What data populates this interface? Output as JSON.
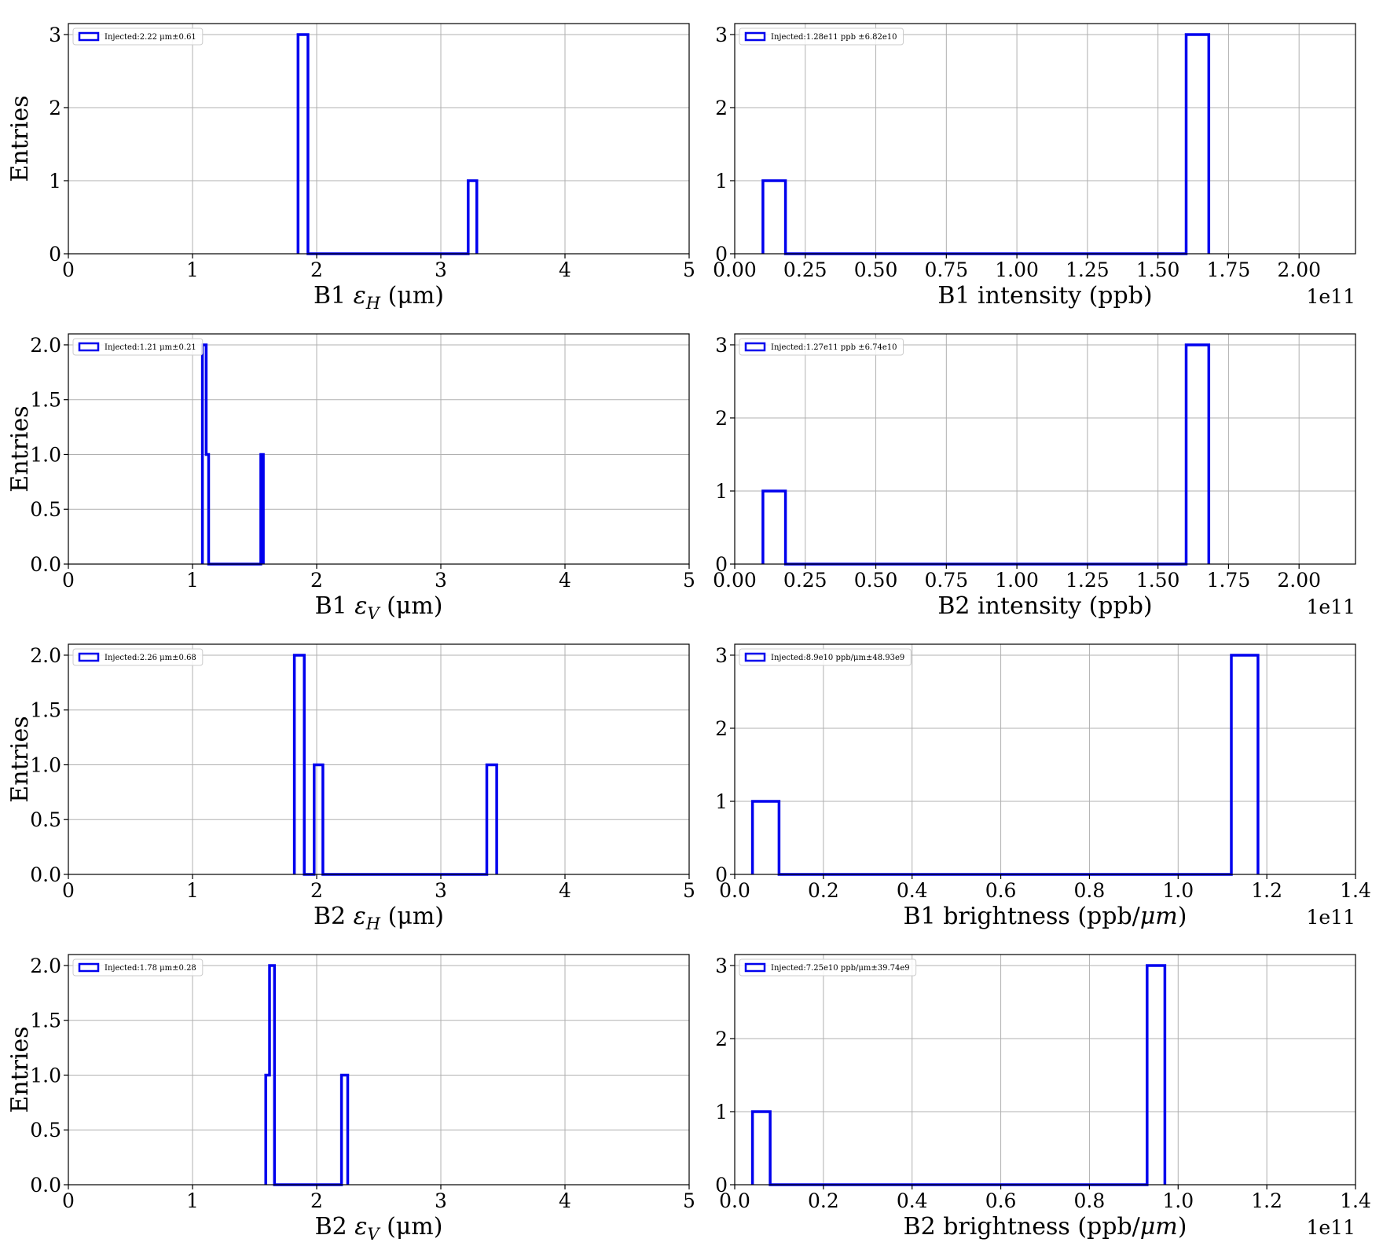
{
  "chart_data": [
    {
      "type": "bar",
      "histtype": "step",
      "xlabel": "B1 εH (μm)",
      "xlabel_parts": {
        "prefix": "B1 ",
        "sym": "ε",
        "sub": "H",
        "suffix": " (μm)"
      },
      "ylabel": "Entries",
      "legend": "Injected:2.22 μm±0.61",
      "legend_loc": "upper-left",
      "xlim": [
        0,
        5
      ],
      "ylim": [
        0,
        3.15
      ],
      "xticks": [
        0,
        1,
        2,
        3,
        4,
        5
      ],
      "xtick_labels": [
        "0",
        "1",
        "2",
        "3",
        "4",
        "5"
      ],
      "yticks": [
        0,
        1,
        2,
        3
      ],
      "ytick_labels": [
        "0",
        "1",
        "2",
        "3"
      ],
      "offset_label": "",
      "grid": true,
      "color": "#0000ee",
      "bins": [
        [
          1.85,
          1.93,
          3
        ],
        [
          1.93,
          3.22,
          0
        ],
        [
          3.22,
          3.29,
          1
        ]
      ]
    },
    {
      "type": "bar",
      "histtype": "step",
      "xlabel": "B1 intensity (ppb)",
      "xlabel_parts": {
        "prefix": "B1 intensity (ppb)",
        "sym": "",
        "sub": "",
        "suffix": ""
      },
      "ylabel": "",
      "legend": "Injected:1.28e11 ppb ±6.82e10",
      "legend_loc": "upper-left",
      "xlim": [
        0,
        2.2
      ],
      "ylim": [
        0,
        3.15
      ],
      "xticks": [
        0,
        0.25,
        0.5,
        0.75,
        1.0,
        1.25,
        1.5,
        1.75,
        2.0
      ],
      "xtick_labels": [
        "0.00",
        "0.25",
        "0.50",
        "0.75",
        "1.00",
        "1.25",
        "1.50",
        "1.75",
        "2.00"
      ],
      "yticks": [
        0,
        1,
        2,
        3
      ],
      "ytick_labels": [
        "0",
        "1",
        "2",
        "3"
      ],
      "offset_label": "1e11",
      "grid": true,
      "color": "#0000ee",
      "bins": [
        [
          0.1,
          0.18,
          1
        ],
        [
          0.18,
          1.6,
          0
        ],
        [
          1.6,
          1.68,
          3
        ]
      ]
    },
    {
      "type": "bar",
      "histtype": "step",
      "xlabel": "B1 εV (μm)",
      "xlabel_parts": {
        "prefix": "B1 ",
        "sym": "ε",
        "sub": "V",
        "suffix": " (μm)"
      },
      "ylabel": "Entries",
      "legend": "Injected:1.21 μm±0.21",
      "legend_loc": "upper-left",
      "xlim": [
        0,
        5
      ],
      "ylim": [
        0,
        2.1
      ],
      "xticks": [
        0,
        1,
        2,
        3,
        4,
        5
      ],
      "xtick_labels": [
        "0",
        "1",
        "2",
        "3",
        "4",
        "5"
      ],
      "yticks": [
        0,
        0.5,
        1.0,
        1.5,
        2.0
      ],
      "ytick_labels": [
        "0.0",
        "0.5",
        "1.0",
        "1.5",
        "2.0"
      ],
      "offset_label": "",
      "grid": true,
      "color": "#0000ee",
      "bins": [
        [
          1.08,
          1.11,
          2
        ],
        [
          1.11,
          1.13,
          1
        ],
        [
          1.13,
          1.55,
          0
        ],
        [
          1.55,
          1.57,
          1
        ]
      ]
    },
    {
      "type": "bar",
      "histtype": "step",
      "xlabel": "B2 intensity (ppb)",
      "xlabel_parts": {
        "prefix": "B2 intensity (ppb)",
        "sym": "",
        "sub": "",
        "suffix": ""
      },
      "ylabel": "",
      "legend": "Injected:1.27e11 ppb ±6.74e10",
      "legend_loc": "upper-left",
      "xlim": [
        0,
        2.2
      ],
      "ylim": [
        0,
        3.15
      ],
      "xticks": [
        0,
        0.25,
        0.5,
        0.75,
        1.0,
        1.25,
        1.5,
        1.75,
        2.0
      ],
      "xtick_labels": [
        "0.00",
        "0.25",
        "0.50",
        "0.75",
        "1.00",
        "1.25",
        "1.50",
        "1.75",
        "2.00"
      ],
      "yticks": [
        0,
        1,
        2,
        3
      ],
      "ytick_labels": [
        "0",
        "1",
        "2",
        "3"
      ],
      "offset_label": "1e11",
      "grid": true,
      "color": "#0000ee",
      "bins": [
        [
          0.1,
          0.18,
          1
        ],
        [
          0.18,
          1.6,
          0
        ],
        [
          1.6,
          1.68,
          3
        ]
      ]
    },
    {
      "type": "bar",
      "histtype": "step",
      "xlabel": "B2 εH (μm)",
      "xlabel_parts": {
        "prefix": "B2 ",
        "sym": "ε",
        "sub": "H",
        "suffix": " (μm)"
      },
      "ylabel": "Entries",
      "legend": "Injected:2.26 μm±0.68",
      "legend_loc": "upper-left",
      "xlim": [
        0,
        5
      ],
      "ylim": [
        0,
        2.1
      ],
      "xticks": [
        0,
        1,
        2,
        3,
        4,
        5
      ],
      "xtick_labels": [
        "0",
        "1",
        "2",
        "3",
        "4",
        "5"
      ],
      "yticks": [
        0,
        0.5,
        1.0,
        1.5,
        2.0
      ],
      "ytick_labels": [
        "0.0",
        "0.5",
        "1.0",
        "1.5",
        "2.0"
      ],
      "offset_label": "",
      "grid": true,
      "color": "#0000ee",
      "bins": [
        [
          1.82,
          1.9,
          2
        ],
        [
          1.9,
          1.98,
          0
        ],
        [
          1.98,
          2.05,
          1
        ],
        [
          2.05,
          3.37,
          0
        ],
        [
          3.37,
          3.45,
          1
        ]
      ]
    },
    {
      "type": "bar",
      "histtype": "step",
      "xlabel": "B1 brightness (ppb/μm)",
      "xlabel_parts": {
        "prefix": "B1 brightness (ppb/",
        "sym": "μm",
        "sub": "",
        "suffix": ")"
      },
      "ylabel": "",
      "legend": "Injected:8.9e10 ppb/μm±48.93e9",
      "legend_loc": "upper-left",
      "xlim": [
        0,
        1.4
      ],
      "ylim": [
        0,
        3.15
      ],
      "xticks": [
        0,
        0.2,
        0.4,
        0.6,
        0.8,
        1.0,
        1.2,
        1.4
      ],
      "xtick_labels": [
        "0.0",
        "0.2",
        "0.4",
        "0.6",
        "0.8",
        "1.0",
        "1.2",
        "1.4"
      ],
      "yticks": [
        0,
        1,
        2,
        3
      ],
      "ytick_labels": [
        "0",
        "1",
        "2",
        "3"
      ],
      "offset_label": "1e11",
      "grid": true,
      "color": "#0000ee",
      "bins": [
        [
          0.04,
          0.1,
          1
        ],
        [
          0.1,
          1.12,
          0
        ],
        [
          1.12,
          1.18,
          3
        ]
      ]
    },
    {
      "type": "bar",
      "histtype": "step",
      "xlabel": "B2 εV (μm)",
      "xlabel_parts": {
        "prefix": "B2 ",
        "sym": "ε",
        "sub": "V",
        "suffix": " (μm)"
      },
      "ylabel": "Entries",
      "legend": "Injected:1.78 μm±0.28",
      "legend_loc": "upper-left",
      "xlim": [
        0,
        5
      ],
      "ylim": [
        0,
        2.1
      ],
      "xticks": [
        0,
        1,
        2,
        3,
        4,
        5
      ],
      "xtick_labels": [
        "0",
        "1",
        "2",
        "3",
        "4",
        "5"
      ],
      "yticks": [
        0,
        0.5,
        1.0,
        1.5,
        2.0
      ],
      "ytick_labels": [
        "0.0",
        "0.5",
        "1.0",
        "1.5",
        "2.0"
      ],
      "offset_label": "",
      "grid": true,
      "color": "#0000ee",
      "bins": [
        [
          1.59,
          1.62,
          1
        ],
        [
          1.62,
          1.66,
          2
        ],
        [
          1.66,
          2.2,
          0
        ],
        [
          2.2,
          2.25,
          1
        ]
      ]
    },
    {
      "type": "bar",
      "histtype": "step",
      "xlabel": "B2 brightness (ppb/μm)",
      "xlabel_parts": {
        "prefix": "B2 brightness (ppb/",
        "sym": "μm",
        "sub": "",
        "suffix": ")"
      },
      "ylabel": "",
      "legend": "Injected:7.25e10 ppb/μm±39.74e9",
      "legend_loc": "upper-left",
      "xlim": [
        0,
        1.4
      ],
      "ylim": [
        0,
        3.15
      ],
      "xticks": [
        0,
        0.2,
        0.4,
        0.6,
        0.8,
        1.0,
        1.2,
        1.4
      ],
      "xtick_labels": [
        "0.0",
        "0.2",
        "0.4",
        "0.6",
        "0.8",
        "1.0",
        "1.2",
        "1.4"
      ],
      "yticks": [
        0,
        1,
        2,
        3
      ],
      "ytick_labels": [
        "0",
        "1",
        "2",
        "3"
      ],
      "offset_label": "1e11",
      "grid": true,
      "color": "#0000ee",
      "bins": [
        [
          0.04,
          0.08,
          1
        ],
        [
          0.08,
          0.93,
          0
        ],
        [
          0.93,
          0.97,
          3
        ]
      ]
    }
  ]
}
